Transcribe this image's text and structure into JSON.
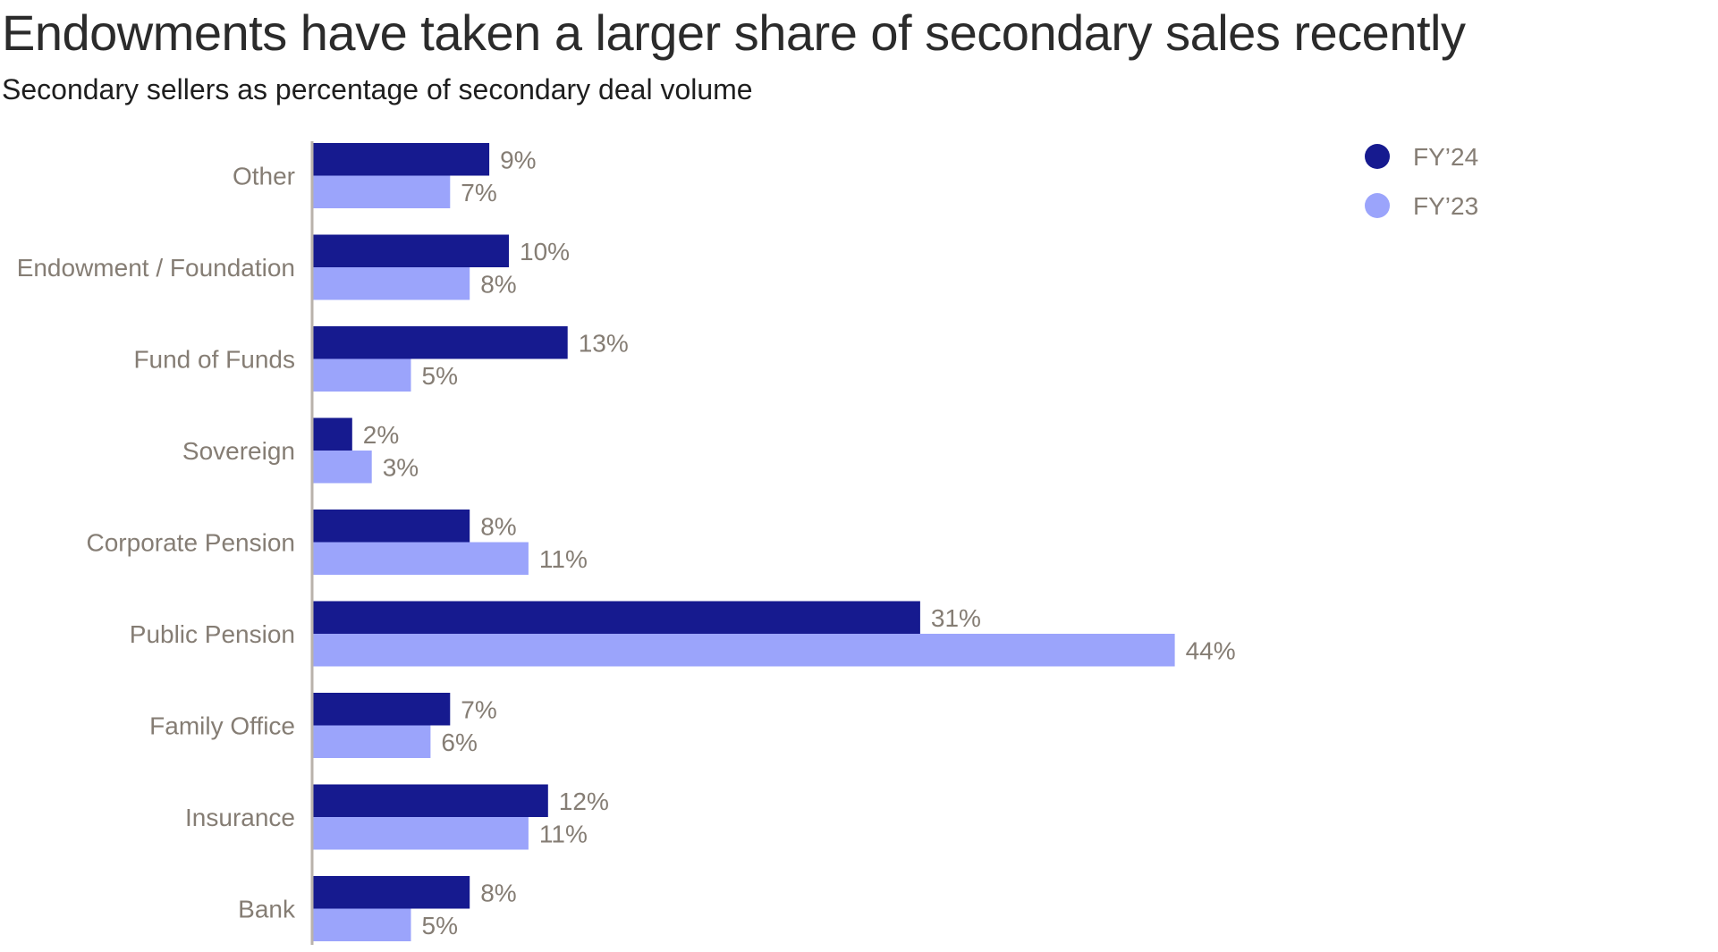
{
  "title": "Endowments have taken a larger share of secondary sales recently",
  "subtitle": "Secondary sellers as percentage of secondary deal volume",
  "chart_data": {
    "type": "bar",
    "orientation": "horizontal",
    "categories": [
      "Other",
      "Endowment / Foundation",
      "Fund of Funds",
      "Sovereign",
      "Corporate  Pension",
      "Public Pension",
      "Family Office",
      "Insurance",
      "Bank"
    ],
    "series": [
      {
        "name": "FY’24",
        "color": "#161a8f",
        "values": [
          9,
          10,
          13,
          2,
          8,
          31,
          7,
          12,
          8
        ],
        "labels": [
          "9%",
          "10%",
          "13%",
          "2%",
          "8%",
          "31%",
          "7%",
          "12%",
          "8%"
        ]
      },
      {
        "name": "FY’23",
        "color": "#9ba4fb",
        "values": [
          7,
          8,
          5,
          3,
          11,
          44,
          6,
          11,
          5
        ],
        "labels": [
          "7%",
          "8%",
          "5%",
          "3%",
          "11%",
          "44%",
          "6%",
          "11%",
          "5%"
        ]
      }
    ],
    "xlim": [
      0,
      50
    ],
    "grid": false,
    "legend_position": "top-right",
    "axis_color": "#b9b2ab"
  }
}
